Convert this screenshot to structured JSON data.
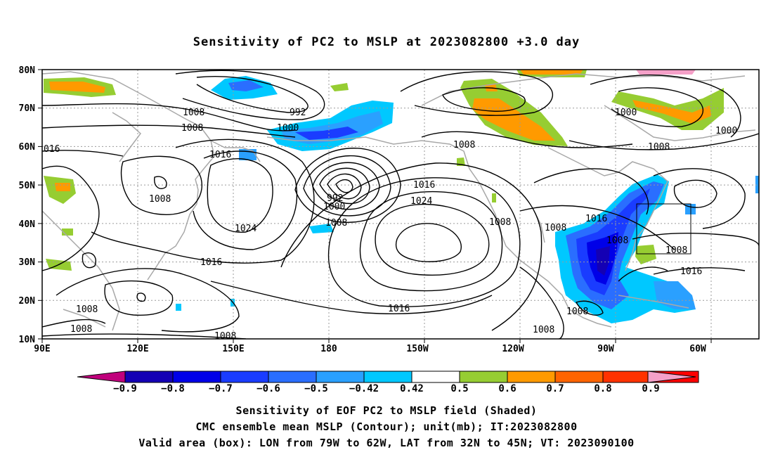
{
  "title": "Sensitivity of PC2 to MSLP at 2023082800 +3.0 day",
  "lat_ticks": [
    "80N",
    "70N",
    "60N",
    "50N",
    "40N",
    "30N",
    "20N",
    "10N"
  ],
  "lon_ticks": [
    "90E",
    "120E",
    "150E",
    "180",
    "150W",
    "120W",
    "90W",
    "60W"
  ],
  "contour_labels": [
    {
      "text": "1008",
      "name": "contour-label-1008-a"
    },
    {
      "text": "1008",
      "name": "contour-label-1008-b"
    },
    {
      "text": "992",
      "name": "contour-label-992-a"
    },
    {
      "text": "1000",
      "name": "contour-label-1000-a"
    },
    {
      "text": "016",
      "name": "contour-label-016"
    },
    {
      "text": "1016",
      "name": "contour-label-1016-a"
    },
    {
      "text": "1008",
      "name": "contour-label-1008-c"
    },
    {
      "text": "1024",
      "name": "contour-label-1024-a"
    },
    {
      "text": "1016",
      "name": "contour-label-1016-b"
    },
    {
      "text": "1008",
      "name": "contour-label-1008-d"
    },
    {
      "text": "1008",
      "name": "contour-label-1008-e"
    },
    {
      "text": "992",
      "name": "contour-label-992-b"
    },
    {
      "text": "1000",
      "name": "contour-label-1000-b"
    },
    {
      "text": "1008",
      "name": "contour-label-1008-f"
    },
    {
      "text": "1016",
      "name": "contour-label-1016-c"
    },
    {
      "text": "1024",
      "name": "contour-label-1024-b"
    },
    {
      "text": "1008",
      "name": "contour-label-1008-g"
    },
    {
      "text": "1016",
      "name": "contour-label-1016-d"
    },
    {
      "text": "1008",
      "name": "contour-label-1008-h"
    },
    {
      "text": "1000",
      "name": "contour-label-1000-c"
    },
    {
      "text": "1008",
      "name": "contour-label-1008-i"
    },
    {
      "text": "1000",
      "name": "contour-label-1000-d"
    },
    {
      "text": "1008",
      "name": "contour-label-1008-j"
    },
    {
      "text": "1016",
      "name": "contour-label-1016-e"
    },
    {
      "text": "1008",
      "name": "contour-label-1008-k"
    },
    {
      "text": "1008",
      "name": "contour-label-1008-l"
    },
    {
      "text": "1008",
      "name": "contour-label-1008-m"
    },
    {
      "text": "1016",
      "name": "contour-label-1016-f"
    },
    {
      "text": "1008",
      "name": "contour-label-1008-n"
    },
    {
      "text": "1008",
      "name": "contour-label-1008-o"
    }
  ],
  "colorbar": {
    "labels": [
      "−0.9",
      "−0.8",
      "−0.7",
      "−0.6",
      "−0.5",
      "−0.42",
      "0.42",
      "0.5",
      "0.6",
      "0.7",
      "0.8",
      "0.9"
    ],
    "colors": [
      "#c0007c",
      "#1400b4",
      "#0000e8",
      "#1a3cff",
      "#2a6eff",
      "#2aa0ff",
      "#00c8ff",
      "#ffffff",
      "#96cd32",
      "#ff9a00",
      "#ff6400",
      "#ff3200",
      "#ff0000",
      "#f5a0c8"
    ]
  },
  "captions": [
    "Sensitivity of EOF PC2 to MSLP field (Shaded)",
    "CMC ensemble mean MSLP (Contour); unit(mb); IT:2023082800",
    "Valid area (box): LON from 79W to 62W, LAT from 32N to 45N; VT: 2023090100"
  ]
}
